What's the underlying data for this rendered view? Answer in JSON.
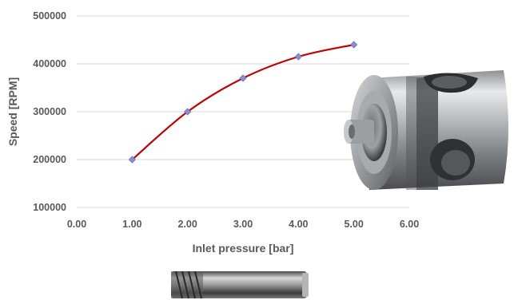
{
  "chart_data": {
    "type": "line",
    "title": "",
    "xlabel": "Inlet pressure [bar]",
    "ylabel": "Speed [RPM]",
    "xlim": [
      0,
      6
    ],
    "ylim": [
      100000,
      500000
    ],
    "x_ticks": [
      "0.00",
      "1.00",
      "2.00",
      "3.00",
      "4.00",
      "5.00",
      "6.00"
    ],
    "y_ticks": [
      "100000",
      "200000",
      "300000",
      "400000",
      "500000"
    ],
    "grid": "horizontal",
    "series": [
      {
        "x": [
          1,
          2,
          3,
          4,
          5
        ],
        "values": [
          200000,
          300000,
          370000,
          415000,
          440000
        ],
        "line_color": "#c00000",
        "marker_color": "#8a8dd6",
        "marker": "diamond"
      }
    ]
  },
  "images": {
    "turbine_housing": "metal-turbine-housing",
    "shaft": "metal-threaded-shaft"
  }
}
